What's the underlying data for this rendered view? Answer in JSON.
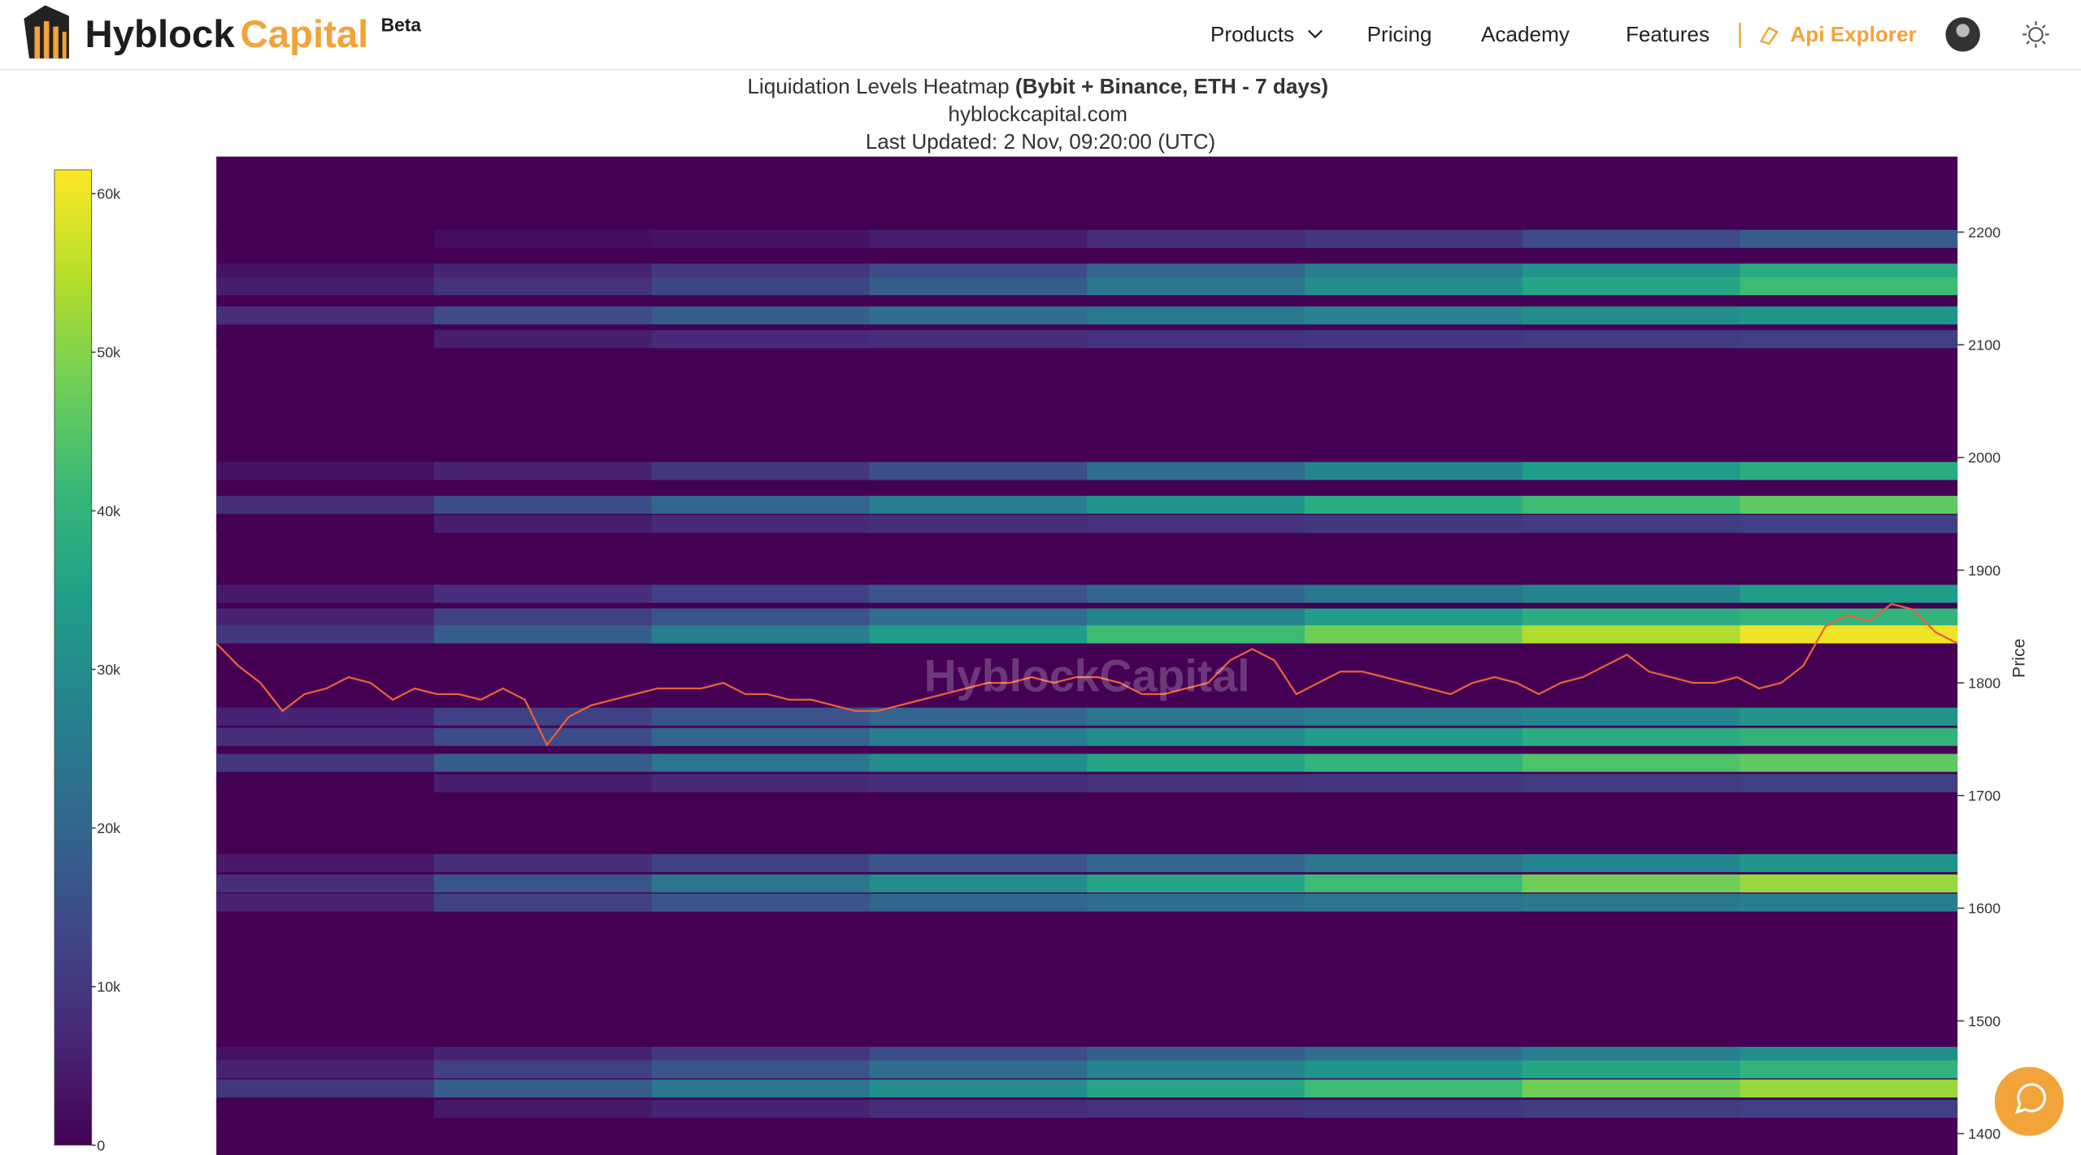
{
  "header": {
    "logo_left": "Hyblock",
    "logo_right": "Capital",
    "badge": "Beta",
    "nav": [
      "Products",
      "Pricing",
      "Academy",
      "Features",
      "Api Explorer"
    ]
  },
  "chart_data": {
    "type": "heatmap",
    "title": "Liquidation Levels Heatmap",
    "title_bold": "(Bybit + Binance, ETH - 7 days)",
    "subtitle": "hyblockcapital.com",
    "updated": "Last Updated: 2 Nov, 09:20:00 (UTC)",
    "watermark": "HyblockCapital",
    "y_label": "Price",
    "ylim": [
      1381,
      2267
    ],
    "yticks": [
      1400,
      1500,
      1600,
      1700,
      1800,
      1900,
      2000,
      2100,
      2200
    ],
    "colorscale": "Viridis",
    "zlim": [
      0,
      61500
    ],
    "zticks": [
      0,
      {
        "value": 10000,
        "label": "10k"
      },
      {
        "value": 20000,
        "label": "20k"
      },
      {
        "value": 30000,
        "label": "30k"
      },
      {
        "value": 40000,
        "label": "40k"
      },
      {
        "value": 50000,
        "label": "50k"
      },
      {
        "value": 60000,
        "label": "60k"
      }
    ],
    "y": [
      2194,
      2164,
      2152,
      2126,
      2105,
      1988,
      1958,
      1941,
      1879,
      1858,
      1843,
      1770,
      1752,
      1729,
      1711,
      1640,
      1622,
      1605,
      1469,
      1457,
      1440,
      1422
    ],
    "z": [
      [
        0,
        2000,
        3000,
        5000,
        8000,
        10000,
        14000,
        18000
      ],
      [
        3000,
        6000,
        10000,
        14000,
        20000,
        26000,
        32000,
        38000
      ],
      [
        5000,
        9000,
        13000,
        18000,
        24000,
        30000,
        36000,
        42000
      ],
      [
        8000,
        14000,
        18000,
        22000,
        25000,
        27000,
        30000,
        32000
      ],
      [
        0,
        5000,
        7000,
        8000,
        9000,
        10000,
        11000,
        12000
      ],
      [
        3000,
        6000,
        10000,
        15000,
        22000,
        28000,
        34000,
        38000
      ],
      [
        8000,
        14000,
        20000,
        26000,
        32000,
        38000,
        42000,
        46000
      ],
      [
        0,
        5000,
        7000,
        8000,
        9000,
        10000,
        11000,
        12000
      ],
      [
        4000,
        8000,
        12000,
        16000,
        20000,
        24000,
        28000,
        34000
      ],
      [
        6000,
        12000,
        16000,
        22000,
        28000,
        34000,
        38000,
        40000
      ],
      [
        10000,
        18000,
        26000,
        34000,
        42000,
        48000,
        54000,
        60000
      ],
      [
        6000,
        12000,
        16000,
        20000,
        24000,
        26000,
        28000,
        32000
      ],
      [
        8000,
        14000,
        20000,
        26000,
        30000,
        34000,
        38000,
        40000
      ],
      [
        10000,
        18000,
        24000,
        30000,
        36000,
        40000,
        44000,
        46000
      ],
      [
        0,
        5000,
        7000,
        8000,
        9000,
        10000,
        11000,
        12000
      ],
      [
        4000,
        8000,
        12000,
        16000,
        20000,
        24000,
        28000,
        32000
      ],
      [
        8000,
        16000,
        24000,
        30000,
        36000,
        42000,
        48000,
        52000
      ],
      [
        6000,
        12000,
        16000,
        20000,
        22000,
        24000,
        25000,
        26000
      ],
      [
        3000,
        6000,
        10000,
        14000,
        18000,
        22000,
        26000,
        30000
      ],
      [
        6000,
        12000,
        16000,
        22000,
        28000,
        32000,
        36000,
        40000
      ],
      [
        10000,
        18000,
        24000,
        30000,
        36000,
        42000,
        48000,
        52000
      ],
      [
        0,
        4000,
        6000,
        8000,
        9000,
        10000,
        11000,
        12000
      ]
    ],
    "series": [
      {
        "name": "Price",
        "color": "#e8603c",
        "values": [
          1835,
          1815,
          1800,
          1775,
          1790,
          1795,
          1805,
          1800,
          1785,
          1795,
          1790,
          1790,
          1785,
          1795,
          1785,
          1745,
          1770,
          1780,
          1785,
          1790,
          1795,
          1795,
          1795,
          1800,
          1790,
          1790,
          1785,
          1785,
          1780,
          1775,
          1775,
          1780,
          1785,
          1790,
          1795,
          1800,
          1800,
          1805,
          1800,
          1805,
          1805,
          1800,
          1790,
          1790,
          1795,
          1800,
          1820,
          1830,
          1820,
          1790,
          1800,
          1810,
          1810,
          1805,
          1800,
          1795,
          1790,
          1800,
          1805,
          1800,
          1790,
          1800,
          1805,
          1815,
          1825,
          1810,
          1805,
          1800,
          1800,
          1805,
          1795,
          1800,
          1815,
          1850,
          1860,
          1855,
          1870,
          1865,
          1845,
          1835
        ]
      }
    ]
  }
}
